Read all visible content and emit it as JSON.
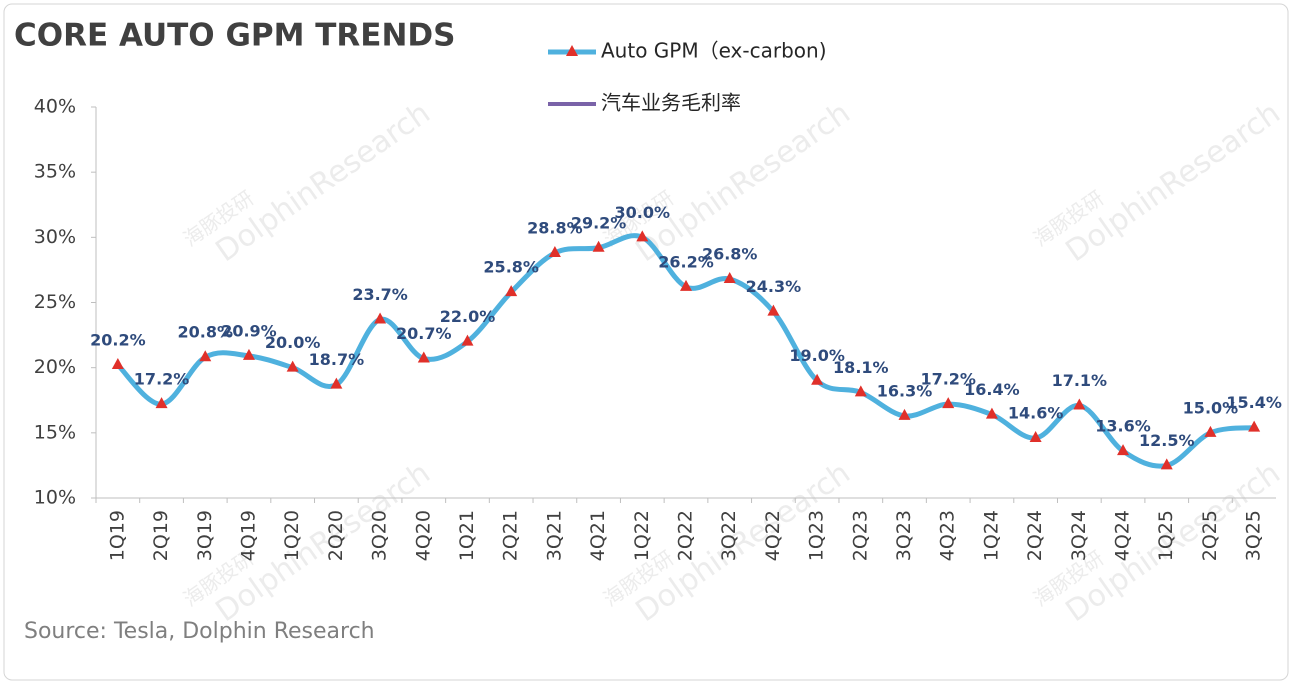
{
  "chart_data": {
    "type": "line",
    "title": "CORE AUTO GPM TRENDS",
    "source": "Source: Tesla, Dolphin Research",
    "watermark": [
      "海豚投研",
      "DolphinResearch"
    ],
    "categories": [
      "1Q19",
      "2Q19",
      "3Q19",
      "4Q19",
      "1Q20",
      "2Q20",
      "3Q20",
      "4Q20",
      "1Q21",
      "2Q21",
      "3Q21",
      "4Q21",
      "1Q22",
      "2Q22",
      "3Q22",
      "4Q22",
      "1Q23",
      "2Q23",
      "3Q23",
      "4Q23",
      "1Q24",
      "2Q24",
      "3Q24",
      "4Q24",
      "1Q25",
      "2Q25",
      "3Q25"
    ],
    "series": [
      {
        "name": "Auto GPM（ex-carbon)",
        "color": "#4fb1de",
        "marker_color": "#e0302a",
        "values": [
          20.2,
          17.2,
          20.8,
          20.9,
          20.0,
          18.7,
          23.7,
          20.7,
          22.0,
          25.8,
          28.8,
          29.2,
          30.0,
          26.2,
          26.8,
          24.3,
          19.0,
          18.1,
          16.3,
          17.2,
          16.4,
          14.6,
          17.1,
          13.6,
          12.5,
          15.0,
          15.4
        ],
        "value_labels": [
          "20.2%",
          "17.2%",
          "20.8%",
          "20.9%",
          "20.0%",
          "18.7%",
          "23.7%",
          "20.7%",
          "22.0%",
          "25.8%",
          "28.8%",
          "29.2%",
          "30.0%",
          "26.2%",
          "26.8%",
          "24.3%",
          "19.0%",
          "18.1%",
          "16.3%",
          "17.2%",
          "16.4%",
          "14.6%",
          "17.1%",
          "13.6%",
          "12.5%",
          "15.0%",
          "15.4%"
        ]
      },
      {
        "name": "汽车业务毛利率",
        "color": "#7a63a8",
        "values": [
          null,
          null,
          null,
          null,
          null,
          null,
          null,
          null,
          null,
          null,
          null,
          null,
          null,
          null,
          null,
          null,
          null,
          null,
          null,
          null,
          null,
          null,
          null,
          null,
          null,
          null,
          null
        ]
      }
    ],
    "ylim": [
      10,
      40
    ],
    "yticks": [
      {
        "value": 10,
        "label": "10%"
      },
      {
        "value": 15,
        "label": "15%"
      },
      {
        "value": 20,
        "label": "20%"
      },
      {
        "value": 25,
        "label": "25%"
      },
      {
        "value": 30,
        "label": "30%"
      },
      {
        "value": 35,
        "label": "35%"
      },
      {
        "value": 40,
        "label": "40%"
      }
    ]
  }
}
